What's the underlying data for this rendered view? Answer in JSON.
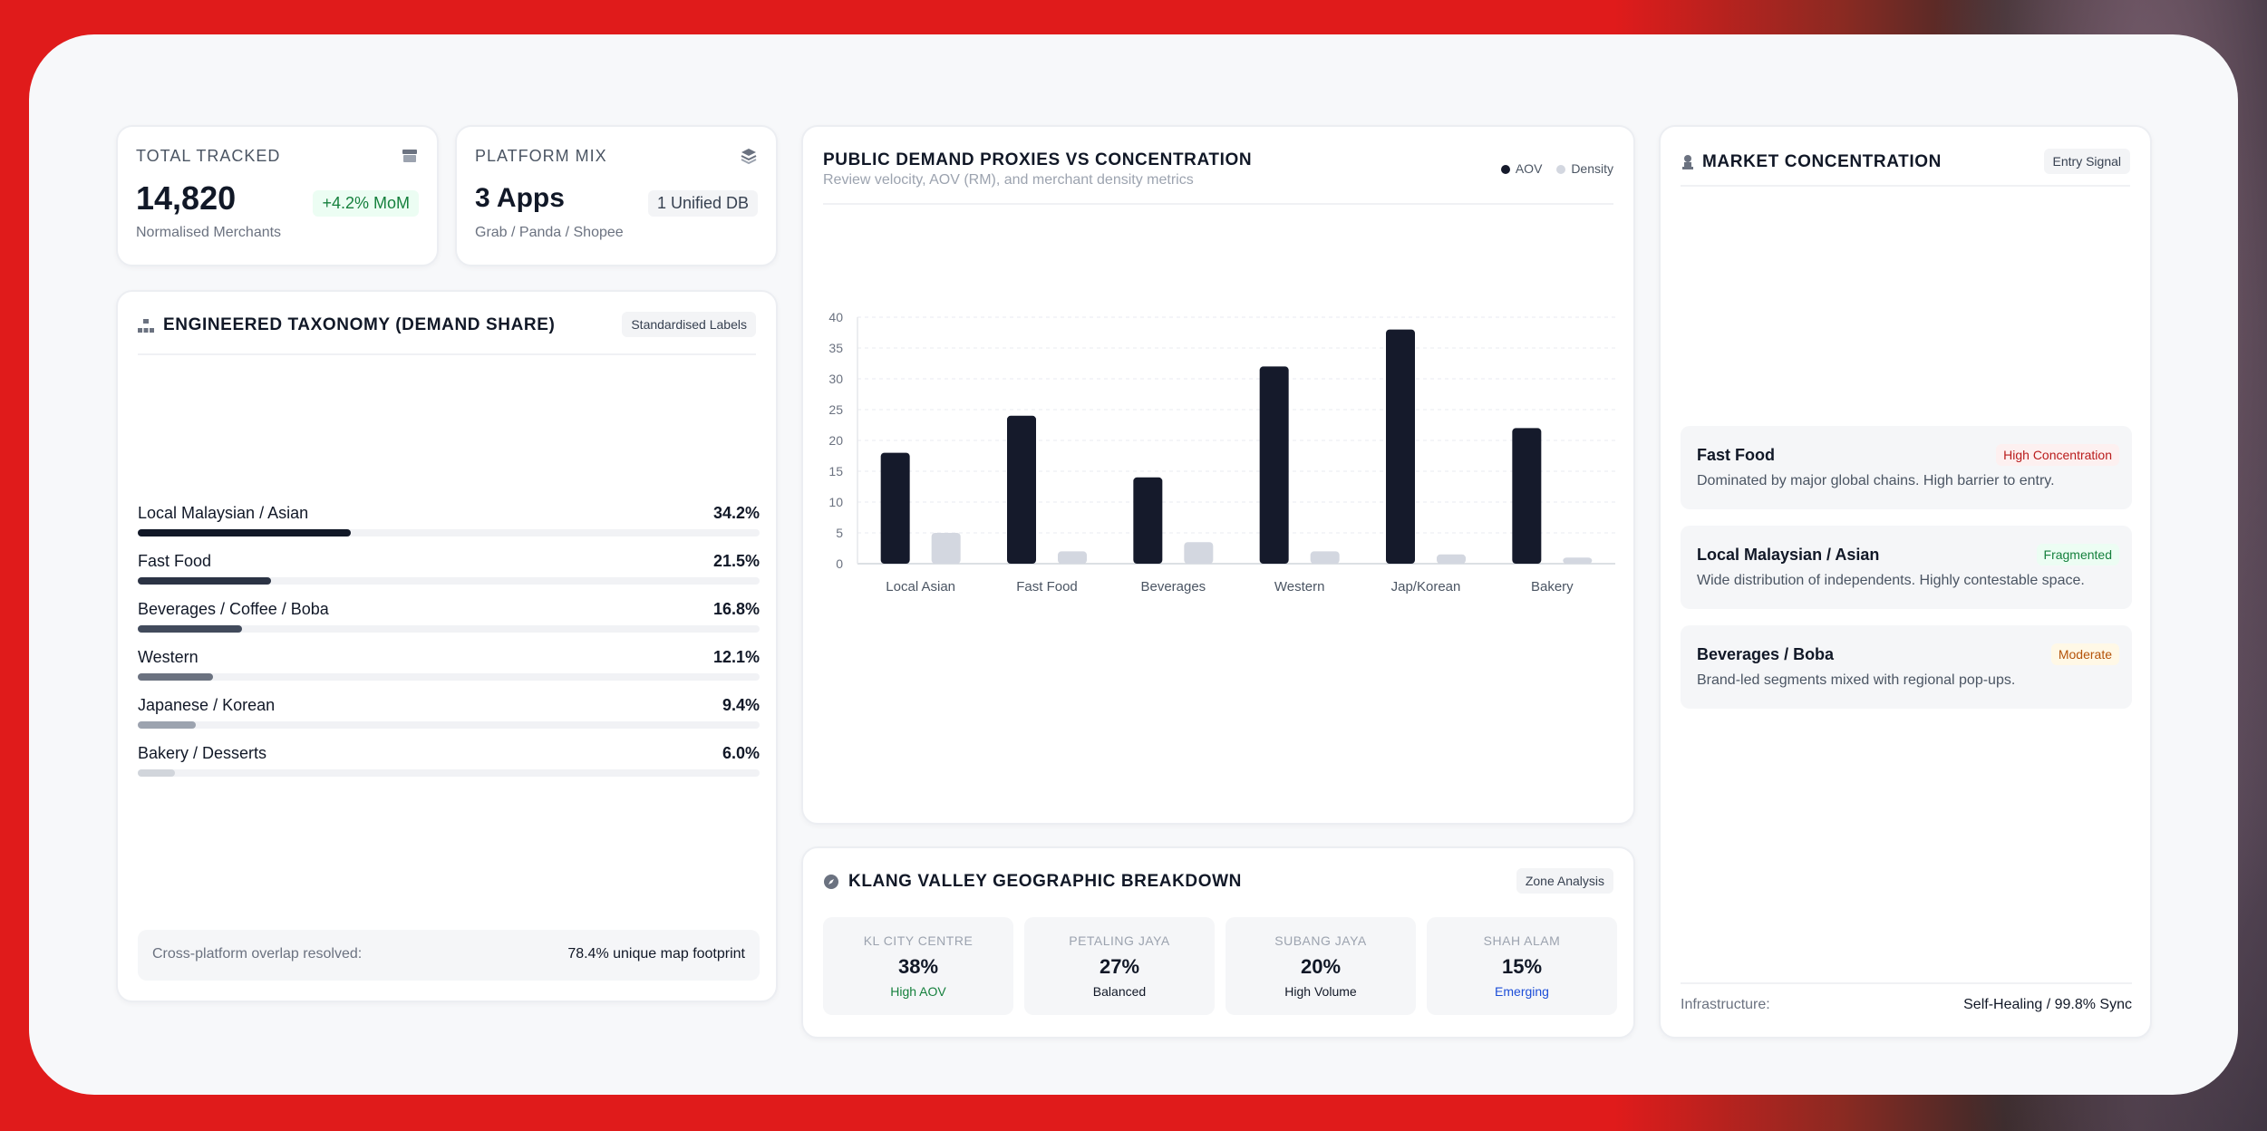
{
  "stats": {
    "total": {
      "label": "TOTAL TRACKED",
      "value": "14,820",
      "change": "+4.2% MoM",
      "sub": "Normalised Merchants",
      "icon": "store-icon"
    },
    "platform": {
      "label": "PLATFORM MIX",
      "value": "3 Apps",
      "badge": "1 Unified DB",
      "sub": "Grab / Panda / Shopee",
      "icon": "layers-icon"
    }
  },
  "taxonomy": {
    "title": "ENGINEERED TAXONOMY (DEMAND SHARE)",
    "tag": "Standardised Labels",
    "rows": [
      {
        "name": "Local Malaysian / Asian",
        "pct": "34.2%",
        "share": 34.2,
        "color": "#111827"
      },
      {
        "name": "Fast Food",
        "pct": "21.5%",
        "share": 21.5,
        "color": "#2b3344"
      },
      {
        "name": "Beverages / Coffee / Boba",
        "pct": "16.8%",
        "share": 16.8,
        "color": "#424b5c"
      },
      {
        "name": "Western",
        "pct": "12.1%",
        "share": 12.1,
        "color": "#6b7280"
      },
      {
        "name": "Japanese / Korean",
        "pct": "9.4%",
        "share": 9.4,
        "color": "#9ca3af"
      },
      {
        "name": "Bakery / Desserts",
        "pct": "6.0%",
        "share": 6.0,
        "color": "#d1d5db"
      }
    ],
    "footnote_label": "Cross-platform overlap resolved:",
    "footnote_value": "78.4% unique map footprint"
  },
  "chart": {
    "title": "PUBLIC DEMAND PROXIES VS CONCENTRATION",
    "subtitle": "Review velocity, AOV (RM), and merchant density metrics",
    "legend": [
      "AOV",
      "Density"
    ],
    "colors": {
      "aov": "#151a2b",
      "density": "#d3d7e0"
    }
  },
  "chart_data": {
    "type": "bar",
    "categories": [
      "Local Asian",
      "Fast Food",
      "Beverages",
      "Western",
      "Jap/Korean",
      "Bakery"
    ],
    "series": [
      {
        "name": "AOV",
        "values": [
          18,
          24,
          14,
          32,
          38,
          22
        ]
      },
      {
        "name": "Density",
        "values": [
          5,
          2,
          3.5,
          2,
          1.5,
          1
        ]
      }
    ],
    "yticks": [
      0,
      5,
      10,
      15,
      20,
      25,
      30,
      35,
      40
    ],
    "ylim": [
      0,
      40
    ],
    "grid": true,
    "legend_position": "top-right"
  },
  "geo": {
    "title": "KLANG VALLEY GEOGRAPHIC BREAKDOWN",
    "tag": "Zone Analysis",
    "zones": [
      {
        "label": "KL CITY CENTRE",
        "value": "38%",
        "status": "High AOV",
        "color": "#15803d"
      },
      {
        "label": "PETALING JAYA",
        "value": "27%",
        "status": "Balanced",
        "color": "#111827"
      },
      {
        "label": "SUBANG JAYA",
        "value": "20%",
        "status": "High Volume",
        "color": "#111827"
      },
      {
        "label": "SHAH ALAM",
        "value": "15%",
        "status": "Emerging",
        "color": "#1d4ed8"
      }
    ]
  },
  "concentration": {
    "title": "MARKET CONCENTRATION",
    "tag": "Entry Signal",
    "items": [
      {
        "name": "Fast Food",
        "badge": "High Concentration",
        "desc": "Dominated by major global chains. High barrier to entry.",
        "badge_bg": "#fdf0f0",
        "badge_fg": "#b91c1c"
      },
      {
        "name": "Local Malaysian / Asian",
        "badge": "Fragmented",
        "desc": "Wide distribution of independents. Highly contestable space.",
        "badge_bg": "#ecfdf3",
        "badge_fg": "#15803d"
      },
      {
        "name": "Beverages / Boba",
        "badge": "Moderate",
        "desc": "Brand-led segments mixed with regional pop-ups.",
        "badge_bg": "#fff8e6",
        "badge_fg": "#b45309"
      }
    ],
    "infra_label": "Infrastructure:",
    "infra_value": "Self-Healing / 99.8% Sync"
  }
}
